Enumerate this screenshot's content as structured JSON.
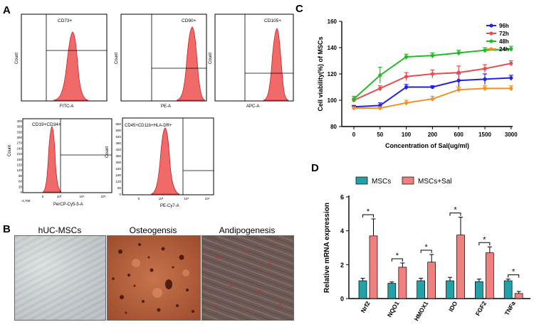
{
  "panel_labels": {
    "a": "A",
    "b": "B",
    "c": "C",
    "d": "D"
  },
  "colors": {
    "hist_fill": "#f06a6a",
    "hist_stroke": "#c82020",
    "blue": "#2222dd",
    "red": "#e84c4c",
    "green": "#22bb22",
    "orange": "#f0922b",
    "teal": "#24a0a8",
    "pink": "#f08080"
  },
  "histograms": [
    {
      "label": "CD73+",
      "x_label": "FITC-A",
      "y_label": "Count"
    },
    {
      "label": "CD90+",
      "x_label": "PE-A",
      "y_label": "Count"
    },
    {
      "label": "CD105+",
      "x_label": "APC-A",
      "y_label": "Count"
    },
    {
      "label": "CD19+CD34+",
      "x_label": "PerCP-Cy5-5-A",
      "y_label": "Count",
      "y_ticks": [
        "0",
        "30",
        "60",
        "90",
        "120",
        "150",
        "180",
        "210",
        "240",
        "270",
        "300",
        "330",
        "360",
        "400"
      ],
      "x_ticks": [
        "-4,709",
        "0",
        "10³",
        "10⁴",
        "10⁵"
      ]
    },
    {
      "label": "CD45+CD11b+HLA-DR+",
      "x_label": "PE-Cy7-A",
      "y_label": "Count",
      "y_ticks": [
        "0",
        "60",
        "120",
        "180",
        "240",
        "300",
        "360",
        "420",
        "480",
        "540",
        "600",
        "660"
      ],
      "x_ticks": [
        "0",
        "10³",
        "10⁴",
        "10⁵"
      ]
    }
  ],
  "photos": [
    {
      "title": "hUC-MSCs"
    },
    {
      "title": "Osteogensis"
    },
    {
      "title": "Andipogenesis"
    }
  ],
  "chart_data": [
    {
      "type": "line",
      "panel": "C",
      "title": "",
      "xlabel": "Concentration of Sal(ug/ml)",
      "ylabel": "Cell viability(%) of MSCs",
      "categories": [
        "0",
        "50",
        "100",
        "200",
        "600",
        "1500",
        "3000"
      ],
      "ylim": [
        80,
        160
      ],
      "yticks": [
        80,
        100,
        120,
        140,
        160
      ],
      "legend_position": "top-right",
      "series": [
        {
          "name": "96h",
          "color": "#2222dd",
          "values": [
            95,
            96,
            110,
            110,
            115,
            116,
            117
          ],
          "errors": [
            1,
            2,
            2,
            1,
            5,
            4,
            2
          ]
        },
        {
          "name": "72h",
          "color": "#e84c4c",
          "values": [
            100,
            109,
            118,
            120,
            121,
            124,
            128
          ],
          "errors": [
            1,
            2,
            3,
            3,
            5,
            3,
            2
          ]
        },
        {
          "name": "48h",
          "color": "#22bb22",
          "values": [
            101,
            119,
            133,
            134,
            136,
            138,
            139
          ],
          "errors": [
            2,
            6,
            2,
            2,
            2,
            2,
            2
          ]
        },
        {
          "name": "24h",
          "color": "#f0922b",
          "values": [
            94,
            94,
            98,
            101,
            108,
            109,
            109
          ],
          "errors": [
            1,
            1,
            2,
            2,
            2,
            2,
            2
          ]
        }
      ]
    },
    {
      "type": "bar",
      "panel": "D",
      "title": "",
      "xlabel": "",
      "ylabel": "Relative mRNA expression",
      "categories": [
        "Nrf2",
        "NQO1",
        "HMOX1",
        "IDO",
        "FGF2",
        "TNFa"
      ],
      "ylim": [
        0,
        6
      ],
      "yticks": [
        0,
        2,
        4,
        6
      ],
      "legend_position": "top",
      "significance": [
        "*",
        "*",
        "*",
        "*",
        "*",
        "*"
      ],
      "series": [
        {
          "name": "MSCs",
          "color": "#24a0a8",
          "values": [
            1.05,
            0.9,
            1.05,
            1.05,
            1.0,
            1.05
          ],
          "errors": [
            0.15,
            0.08,
            0.15,
            0.2,
            0.15,
            0.1
          ]
        },
        {
          "name": "MSCs+Sal",
          "color": "#f08080",
          "values": [
            3.7,
            1.85,
            2.15,
            3.75,
            2.7,
            0.3
          ],
          "errors": [
            1.0,
            0.25,
            0.45,
            1.05,
            0.35,
            0.12
          ]
        }
      ]
    }
  ]
}
